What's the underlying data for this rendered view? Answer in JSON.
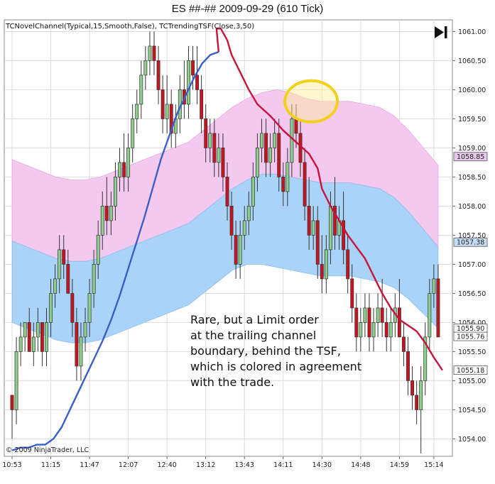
{
  "chart_data": {
    "type": "candlestick",
    "title": "ES ##-##  2009-09-29 (610 Tick)",
    "indicators_label": "TCNovelChannel(Typical,15,Smooth,False), TCTrendingTSF(Close,3,50)",
    "copyright": "© 2009 NinjaTrader, LLC",
    "ylim": [
      1053.7,
      1061.2
    ],
    "y_ticks": [
      1054.0,
      1054.5,
      1055.0,
      1055.5,
      1056.0,
      1056.5,
      1057.0,
      1057.5,
      1058.0,
      1058.5,
      1059.0,
      1059.5,
      1060.0,
      1060.5,
      1061.0
    ],
    "y_tick_labels": [
      "1054.00",
      "1054.50",
      "1055.00",
      "1055.50",
      "1056.00",
      "1056.50",
      "1057.00",
      "1057.50",
      "1058.00",
      "1058.50",
      "1059.00",
      "1059.50",
      "1060.00",
      "1060.50",
      "1061.00"
    ],
    "x_tick_labels": [
      {
        "bar": 0,
        "label": "10:53"
      },
      {
        "bar": 9,
        "label": "11:15"
      },
      {
        "bar": 18,
        "label": "11:47"
      },
      {
        "bar": 27,
        "label": "12:07"
      },
      {
        "bar": 36,
        "label": "12:40"
      },
      {
        "bar": 45,
        "label": "13:12"
      },
      {
        "bar": 54,
        "label": "13:43"
      },
      {
        "bar": 63,
        "label": "14:11"
      },
      {
        "bar": 72,
        "label": "14:30"
      },
      {
        "bar": 81,
        "label": "14:48"
      },
      {
        "bar": 90,
        "label": "14:59"
      },
      {
        "bar": 98,
        "label": "15:14"
      }
    ],
    "price_markers": [
      {
        "label": "1058.85",
        "value": 1058.85,
        "color": "#e6c8ea"
      },
      {
        "label": "1057.38",
        "value": 1057.38,
        "color": "#c6dcf4"
      },
      {
        "label": "1055.90",
        "value": 1055.9,
        "color": "#ffffff"
      },
      {
        "label": "1055.76",
        "value": 1055.76,
        "color": "#ffffff"
      },
      {
        "label": "1055.18",
        "value": 1055.18,
        "color": "#ffffff"
      }
    ],
    "candles_ohlc": [
      [
        1054.75,
        1054.75,
        1054.0,
        1054.5
      ],
      [
        1054.5,
        1055.75,
        1054.25,
        1055.5
      ],
      [
        1055.5,
        1056.0,
        1055.25,
        1055.75
      ],
      [
        1055.75,
        1056.0,
        1055.5,
        1056.0
      ],
      [
        1056.0,
        1056.25,
        1055.5,
        1055.5
      ],
      [
        1055.5,
        1056.0,
        1055.25,
        1055.75
      ],
      [
        1055.75,
        1056.25,
        1055.5,
        1056.0
      ],
      [
        1056.0,
        1056.0,
        1055.25,
        1055.5
      ],
      [
        1055.5,
        1056.25,
        1055.25,
        1056.0
      ],
      [
        1056.0,
        1056.75,
        1055.75,
        1056.5
      ],
      [
        1056.5,
        1057.0,
        1056.25,
        1056.75
      ],
      [
        1056.75,
        1057.5,
        1056.5,
        1057.25
      ],
      [
        1057.25,
        1057.5,
        1056.75,
        1057.0
      ],
      [
        1057.0,
        1057.25,
        1056.5,
        1056.5
      ],
      [
        1056.5,
        1056.75,
        1055.75,
        1056.0
      ],
      [
        1056.0,
        1056.25,
        1055.0,
        1055.25
      ],
      [
        1055.25,
        1056.0,
        1055.0,
        1055.75
      ],
      [
        1055.75,
        1056.25,
        1055.5,
        1056.0
      ],
      [
        1056.0,
        1056.75,
        1055.75,
        1056.5
      ],
      [
        1056.5,
        1057.25,
        1056.25,
        1057.0
      ],
      [
        1057.0,
        1057.75,
        1056.75,
        1057.5
      ],
      [
        1057.5,
        1058.25,
        1057.25,
        1058.0
      ],
      [
        1058.0,
        1058.5,
        1057.5,
        1057.75
      ],
      [
        1057.75,
        1058.25,
        1057.5,
        1058.0
      ],
      [
        1058.0,
        1058.75,
        1057.75,
        1058.5
      ],
      [
        1058.5,
        1059.0,
        1058.25,
        1058.75
      ],
      [
        1058.75,
        1059.25,
        1058.25,
        1058.5
      ],
      [
        1058.5,
        1059.25,
        1058.25,
        1059.0
      ],
      [
        1059.0,
        1059.75,
        1058.75,
        1059.5
      ],
      [
        1059.5,
        1060.0,
        1059.25,
        1059.75
      ],
      [
        1059.75,
        1060.5,
        1059.5,
        1060.25
      ],
      [
        1060.25,
        1060.75,
        1060.0,
        1060.5
      ],
      [
        1060.5,
        1061.0,
        1060.25,
        1060.75
      ],
      [
        1060.75,
        1061.0,
        1060.25,
        1060.5
      ],
      [
        1060.5,
        1060.75,
        1059.75,
        1060.0
      ],
      [
        1060.0,
        1060.25,
        1059.25,
        1059.5
      ],
      [
        1059.5,
        1060.25,
        1059.25,
        1059.75
      ],
      [
        1059.75,
        1060.0,
        1059.0,
        1059.25
      ],
      [
        1059.25,
        1059.75,
        1059.0,
        1059.5
      ],
      [
        1059.5,
        1060.25,
        1059.25,
        1060.0
      ],
      [
        1060.0,
        1060.5,
        1059.5,
        1059.75
      ],
      [
        1059.75,
        1060.75,
        1059.5,
        1060.5
      ],
      [
        1060.5,
        1060.75,
        1060.0,
        1060.25
      ],
      [
        1060.25,
        1060.75,
        1059.75,
        1060.0
      ],
      [
        1060.0,
        1060.25,
        1059.25,
        1059.5
      ],
      [
        1059.5,
        1059.75,
        1058.75,
        1059.0
      ],
      [
        1059.0,
        1059.5,
        1058.75,
        1059.25
      ],
      [
        1059.25,
        1059.5,
        1058.5,
        1058.75
      ],
      [
        1058.75,
        1059.25,
        1058.5,
        1059.0
      ],
      [
        1059.0,
        1059.25,
        1058.25,
        1058.5
      ],
      [
        1058.5,
        1058.75,
        1057.75,
        1058.0
      ],
      [
        1058.0,
        1058.25,
        1057.25,
        1057.5
      ],
      [
        1057.5,
        1057.75,
        1056.75,
        1057.0
      ],
      [
        1057.0,
        1057.75,
        1056.75,
        1057.5
      ],
      [
        1057.5,
        1058.0,
        1057.25,
        1057.75
      ],
      [
        1057.75,
        1058.25,
        1057.5,
        1058.0
      ],
      [
        1058.0,
        1058.75,
        1057.75,
        1058.5
      ],
      [
        1058.5,
        1059.25,
        1058.25,
        1059.0
      ],
      [
        1059.0,
        1059.5,
        1058.75,
        1059.25
      ],
      [
        1059.25,
        1059.5,
        1058.5,
        1058.75
      ],
      [
        1058.75,
        1059.25,
        1058.5,
        1059.0
      ],
      [
        1059.0,
        1059.5,
        1058.75,
        1059.25
      ],
      [
        1059.25,
        1059.5,
        1058.25,
        1058.5
      ],
      [
        1058.5,
        1058.75,
        1058.0,
        1058.25
      ],
      [
        1058.25,
        1059.0,
        1058.0,
        1058.75
      ],
      [
        1058.75,
        1059.75,
        1058.5,
        1059.5
      ],
      [
        1059.5,
        1059.75,
        1059.0,
        1059.25
      ],
      [
        1059.25,
        1059.5,
        1058.5,
        1058.75
      ],
      [
        1058.75,
        1059.0,
        1057.75,
        1058.0
      ],
      [
        1058.0,
        1058.5,
        1057.25,
        1057.5
      ],
      [
        1057.5,
        1058.0,
        1057.25,
        1057.75
      ],
      [
        1057.75,
        1058.0,
        1056.75,
        1057.0
      ],
      [
        1057.0,
        1057.5,
        1056.5,
        1056.75
      ],
      [
        1056.75,
        1057.5,
        1056.5,
        1057.25
      ],
      [
        1057.25,
        1058.25,
        1057.0,
        1058.0
      ],
      [
        1058.0,
        1058.5,
        1057.25,
        1057.5
      ],
      [
        1057.5,
        1058.0,
        1057.25,
        1057.75
      ],
      [
        1057.75,
        1058.25,
        1057.0,
        1057.25
      ],
      [
        1057.25,
        1057.5,
        1056.5,
        1056.75
      ],
      [
        1056.75,
        1057.0,
        1056.0,
        1056.25
      ],
      [
        1056.25,
        1056.5,
        1055.5,
        1055.75
      ],
      [
        1055.75,
        1056.25,
        1055.5,
        1056.0
      ],
      [
        1056.0,
        1056.5,
        1055.75,
        1056.25
      ],
      [
        1056.25,
        1056.5,
        1055.5,
        1055.75
      ],
      [
        1055.75,
        1056.25,
        1055.5,
        1056.0
      ],
      [
        1056.0,
        1056.5,
        1055.75,
        1056.25
      ],
      [
        1056.25,
        1056.75,
        1055.75,
        1056.0
      ],
      [
        1056.0,
        1056.25,
        1055.5,
        1055.75
      ],
      [
        1055.75,
        1056.25,
        1055.5,
        1056.0
      ],
      [
        1056.0,
        1056.5,
        1055.75,
        1056.25
      ],
      [
        1056.25,
        1056.75,
        1055.75,
        1055.75
      ],
      [
        1055.75,
        1056.0,
        1055.25,
        1055.5
      ],
      [
        1055.5,
        1055.75,
        1054.75,
        1055.0
      ],
      [
        1055.0,
        1055.25,
        1054.5,
        1054.75
      ],
      [
        1054.75,
        1055.0,
        1054.25,
        1054.5
      ],
      [
        1054.5,
        1055.25,
        1053.75,
        1055.0
      ],
      [
        1055.0,
        1056.0,
        1054.75,
        1055.75
      ],
      [
        1055.75,
        1056.75,
        1055.5,
        1056.5
      ],
      [
        1056.5,
        1057.0,
        1056.25,
        1056.75
      ],
      [
        1056.75,
        1057.0,
        1055.75,
        1055.75
      ]
    ],
    "channel": {
      "upper": [
        1058.8,
        1058.7,
        1058.6,
        1058.5,
        1058.45,
        1058.45,
        1058.5,
        1058.6,
        1058.7,
        1058.8,
        1058.9,
        1059.0,
        1059.1,
        1059.3,
        1059.5,
        1059.7,
        1059.85,
        1059.95,
        1060.0,
        1059.95,
        1059.85,
        1059.8,
        1059.8,
        1059.8,
        1059.75,
        1059.7,
        1059.55,
        1059.3,
        1059.0,
        1058.7
      ],
      "middle": [
        1057.4,
        1057.3,
        1057.2,
        1057.1,
        1057.05,
        1057.05,
        1057.1,
        1057.2,
        1057.3,
        1057.4,
        1057.5,
        1057.6,
        1057.7,
        1057.9,
        1058.1,
        1058.3,
        1058.45,
        1058.55,
        1058.55,
        1058.5,
        1058.45,
        1058.4,
        1058.4,
        1058.4,
        1058.35,
        1058.3,
        1058.15,
        1057.9,
        1057.6,
        1057.3
      ],
      "lower": [
        1056.0,
        1055.9,
        1055.8,
        1055.7,
        1055.65,
        1055.65,
        1055.7,
        1055.8,
        1055.9,
        1056.0,
        1056.1,
        1056.2,
        1056.3,
        1056.5,
        1056.7,
        1056.9,
        1057.0,
        1057.0,
        1056.95,
        1056.9,
        1056.85,
        1056.8,
        1056.8,
        1056.8,
        1056.75,
        1056.7,
        1056.6,
        1056.4,
        1056.15,
        1055.9
      ]
    },
    "tsf_blue": [
      1053.8,
      1053.85,
      1053.85,
      1053.9,
      1053.9,
      1054.0,
      1054.2,
      1054.5,
      1054.8,
      1055.1,
      1055.4,
      1055.7,
      1056.05,
      1056.45,
      1056.9,
      1057.35,
      1057.8,
      1058.3,
      1058.8,
      1059.2,
      1059.6,
      1059.9,
      1060.2,
      1060.45,
      1060.6,
      1060.65
    ],
    "tsf_red": [
      {
        "bar": 47.5,
        "value": 1061.05
      },
      {
        "bar": 48.5,
        "value": 1061.05
      },
      {
        "bar": 50,
        "value": 1060.85
      },
      {
        "bar": 51,
        "value": 1060.6
      },
      {
        "bar": 53,
        "value": 1060.3
      },
      {
        "bar": 55,
        "value": 1060.0
      },
      {
        "bar": 57,
        "value": 1059.75
      },
      {
        "bar": 60,
        "value": 1059.55
      },
      {
        "bar": 63,
        "value": 1059.3
      },
      {
        "bar": 66,
        "value": 1059.1
      },
      {
        "bar": 69,
        "value": 1058.9
      },
      {
        "bar": 71,
        "value": 1058.65
      },
      {
        "bar": 72,
        "value": 1058.3
      },
      {
        "bar": 74,
        "value": 1058.0
      },
      {
        "bar": 76,
        "value": 1057.75
      },
      {
        "bar": 78,
        "value": 1057.5
      },
      {
        "bar": 80,
        "value": 1057.3
      },
      {
        "bar": 82,
        "value": 1057.1
      },
      {
        "bar": 84,
        "value": 1056.8
      },
      {
        "bar": 86,
        "value": 1056.5
      },
      {
        "bar": 88,
        "value": 1056.25
      },
      {
        "bar": 90,
        "value": 1056.05
      },
      {
        "bar": 92,
        "value": 1055.95
      },
      {
        "bar": 94,
        "value": 1055.85
      },
      {
        "bar": 96,
        "value": 1055.65
      },
      {
        "bar": 98,
        "value": 1055.4
      },
      {
        "bar": 100,
        "value": 1055.18
      }
    ],
    "highlight_circle": {
      "bar": 69.5,
      "value": 1059.8
    },
    "annotation": [
      "Rare, but a Limit order",
      "at the trailing channel",
      "boundary, behind the TSF,",
      "which is colored in agreement",
      "with the trade."
    ],
    "colors": {
      "up_candle": "#8ccf8c",
      "down_candle": "#c8141e",
      "upper_band": "#f3c9f0",
      "lower_band": "#a9d3f8",
      "tsf_up": "#3860c8",
      "tsf_down": "#c8143c",
      "highlight": "#f1d11c",
      "grid": "#dcdcdc"
    }
  }
}
